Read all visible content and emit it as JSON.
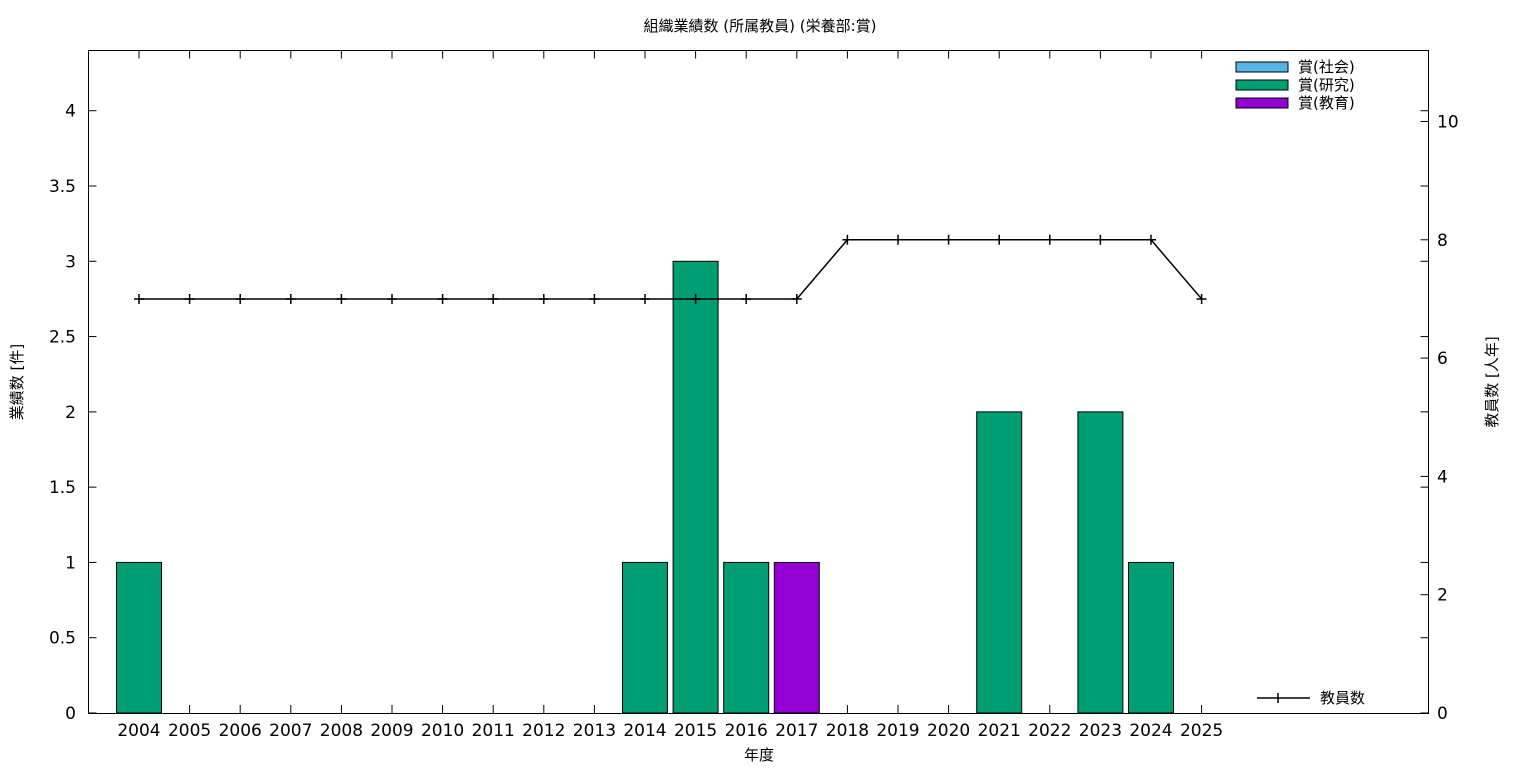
{
  "chart_data": {
    "type": "bar",
    "title": "組織業績数 (所属教員) (栄養部:賞)",
    "xlabel": "年度",
    "ylabel": "業績数 [件]",
    "y2label": "教員数 [人年]",
    "categories": [
      "2004",
      "2005",
      "2006",
      "2007",
      "2008",
      "2009",
      "2010",
      "2011",
      "2012",
      "2013",
      "2014",
      "2015",
      "2016",
      "2017",
      "2018",
      "2019",
      "2020",
      "2021",
      "2022",
      "2023",
      "2024",
      "2025"
    ],
    "ylim": [
      0,
      4.4
    ],
    "yticks": [
      "0",
      "0.5",
      "1",
      "1.5",
      "2",
      "2.5",
      "3",
      "3.5",
      "4"
    ],
    "y2lim": [
      0,
      11.2
    ],
    "y2ticks": [
      "0",
      "2",
      "4",
      "6",
      "8",
      "10"
    ],
    "grid": false,
    "legend_placement": "top-right",
    "series": [
      {
        "name": "賞(社会)",
        "color": "#56b4e9",
        "axis": "left",
        "kind": "bar",
        "values": [
          0,
          0,
          0,
          0,
          0,
          0,
          0,
          0,
          0,
          0,
          0,
          0,
          0,
          0,
          0,
          0,
          0,
          0,
          0,
          0,
          0,
          0
        ]
      },
      {
        "name": "賞(研究)",
        "color": "#009e73",
        "axis": "left",
        "kind": "bar",
        "values": [
          1,
          0,
          0,
          0,
          0,
          0,
          0,
          0,
          0,
          0,
          1,
          3,
          1,
          0,
          0,
          0,
          0,
          2,
          0,
          2,
          1,
          0
        ]
      },
      {
        "name": "賞(教育)",
        "color": "#9400d3",
        "axis": "left",
        "kind": "bar",
        "values": [
          0,
          0,
          0,
          0,
          0,
          0,
          0,
          0,
          0,
          0,
          0,
          0,
          0,
          1,
          0,
          0,
          0,
          0,
          0,
          0,
          0,
          0
        ]
      },
      {
        "name": "教員数",
        "color": "#000000",
        "axis": "right",
        "kind": "line",
        "values": [
          7,
          7,
          7,
          7,
          7,
          7,
          7,
          7,
          7,
          7,
          7,
          7,
          7,
          7,
          8,
          8,
          8,
          8,
          8,
          8,
          8,
          7
        ]
      }
    ]
  }
}
